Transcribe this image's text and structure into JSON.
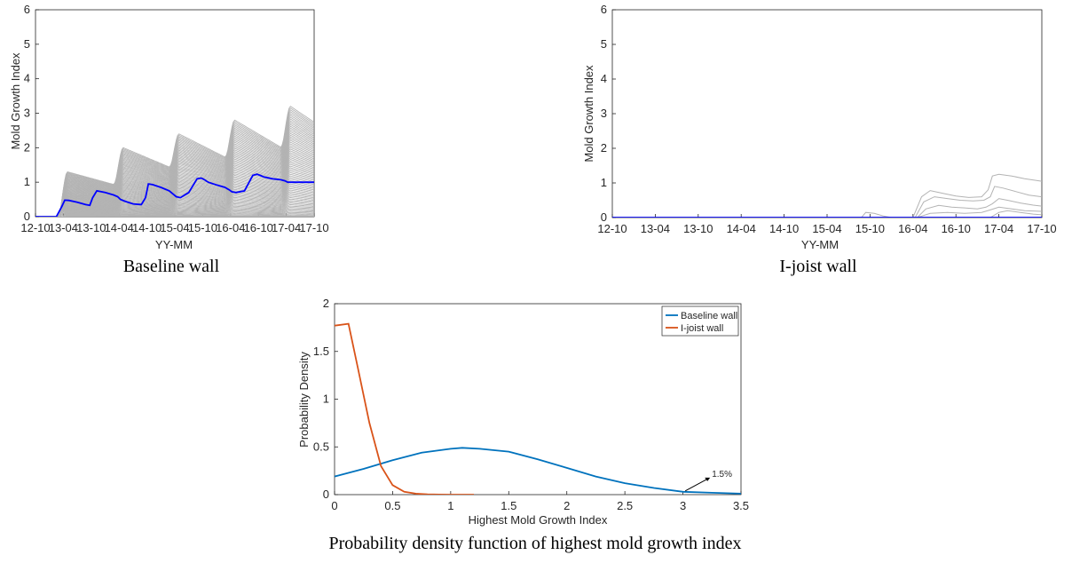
{
  "captions": {
    "baseline": "Baseline wall",
    "ijoist": "I-joist wall",
    "pdf": "Probability density function of highest mold growth index"
  },
  "colors": {
    "gray_lines": "#b3b3b3",
    "mean_line": "#0000ff",
    "baseline_pdf": "#0072bd",
    "ijoist_pdf": "#d95319",
    "axis": "#262626"
  },
  "chart_data": [
    {
      "id": "baseline",
      "type": "line",
      "xlabel": "YY-MM",
      "ylabel": "Mold Growth Index",
      "x_tick_labels": [
        "12-10",
        "13-04",
        "13-10",
        "14-04",
        "14-10",
        "15-04",
        "15-10",
        "16-04",
        "16-10",
        "17-04",
        "17-10"
      ],
      "xlim": [
        0,
        10
      ],
      "ylim": [
        0,
        6
      ],
      "y_ticks": [
        0,
        1,
        2,
        3,
        4,
        5,
        6
      ],
      "highlight_series": {
        "color": "#0000ff",
        "x": [
          0,
          0.75,
          0.95,
          1.05,
          1.2,
          1.5,
          1.8,
          1.95,
          2.05,
          2.2,
          2.5,
          2.8,
          2.95,
          3.05,
          3.2,
          3.5,
          3.8,
          3.95,
          4.05,
          4.2,
          4.5,
          4.8,
          4.95,
          5.05,
          5.2,
          5.5,
          5.8,
          5.95,
          6.05,
          6.2,
          6.5,
          6.8,
          6.95,
          7.05,
          7.2,
          7.5,
          7.8,
          7.95,
          8.05,
          8.2,
          8.5,
          8.8,
          8.95,
          9.05,
          9.2,
          9.5,
          9.8,
          10
        ],
        "y": [
          0,
          0,
          0.3,
          0.48,
          0.47,
          0.42,
          0.35,
          0.33,
          0.55,
          0.75,
          0.7,
          0.63,
          0.58,
          0.5,
          0.45,
          0.37,
          0.35,
          0.55,
          0.95,
          0.93,
          0.85,
          0.75,
          0.65,
          0.58,
          0.55,
          0.7,
          1.1,
          1.12,
          1.08,
          1.0,
          0.92,
          0.85,
          0.78,
          0.72,
          0.7,
          0.75,
          1.2,
          1.23,
          1.2,
          1.15,
          1.1,
          1.07,
          1.04,
          1.0,
          1.0,
          1.0,
          1.0,
          1.0
        ]
      },
      "envelope": {
        "color": "#b3b3b3",
        "peaks_max": [
          1.3,
          2.0,
          2.4,
          2.8,
          3.2
        ],
        "end_max": 3.0
      }
    },
    {
      "id": "ijoist",
      "type": "line",
      "xlabel": "YY-MM",
      "ylabel": "Mold Growth Index",
      "x_tick_labels": [
        "12-10",
        "13-04",
        "13-10",
        "14-04",
        "14-10",
        "15-04",
        "15-10",
        "16-04",
        "16-10",
        "17-04",
        "17-10"
      ],
      "xlim": [
        0,
        10
      ],
      "ylim": [
        0,
        6
      ],
      "y_ticks": [
        0,
        1,
        2,
        3,
        4,
        5,
        6
      ],
      "highlight_series": {
        "color": "#0000ff",
        "x": [
          0,
          10
        ],
        "y": [
          0,
          0
        ]
      },
      "gray_series": [
        {
          "x": [
            0,
            7.0,
            7.2,
            7.4,
            7.7,
            8.0,
            8.3,
            8.6,
            8.75,
            8.85,
            9.0,
            9.3,
            9.6,
            10
          ],
          "y": [
            0,
            0,
            0.6,
            0.78,
            0.7,
            0.62,
            0.58,
            0.6,
            0.8,
            1.2,
            1.25,
            1.2,
            1.12,
            1.05
          ]
        },
        {
          "x": [
            0,
            7.05,
            7.25,
            7.5,
            7.8,
            8.1,
            8.4,
            8.65,
            8.8,
            8.9,
            9.1,
            9.4,
            9.7,
            10
          ],
          "y": [
            0,
            0,
            0.45,
            0.6,
            0.55,
            0.5,
            0.48,
            0.5,
            0.6,
            0.9,
            0.85,
            0.75,
            0.65,
            0.6
          ]
        },
        {
          "x": [
            0,
            7.1,
            7.3,
            7.6,
            7.9,
            8.2,
            8.5,
            8.7,
            8.85,
            9.0,
            9.2,
            9.5,
            9.8,
            10
          ],
          "y": [
            0,
            0,
            0.25,
            0.35,
            0.3,
            0.28,
            0.25,
            0.3,
            0.4,
            0.55,
            0.5,
            0.42,
            0.36,
            0.33
          ]
        },
        {
          "x": [
            0,
            7.1,
            7.4,
            7.8,
            8.2,
            8.6,
            8.8,
            9.0,
            9.3,
            9.6,
            10
          ],
          "y": [
            0,
            0,
            0.12,
            0.15,
            0.12,
            0.15,
            0.22,
            0.3,
            0.25,
            0.2,
            0.18
          ]
        },
        {
          "x": [
            0,
            5.8,
            5.9,
            6.1,
            6.3,
            6.5,
            10
          ],
          "y": [
            0,
            0,
            0.15,
            0.12,
            0.05,
            0,
            0
          ]
        },
        {
          "x": [
            0,
            8.8,
            9.0,
            9.2,
            9.5,
            9.8,
            10
          ],
          "y": [
            0,
            0,
            0.15,
            0.2,
            0.15,
            0.1,
            0.08
          ]
        }
      ]
    },
    {
      "id": "pdf",
      "type": "line",
      "xlabel": "Highest Mold Growth Index",
      "ylabel": "Probability Density",
      "xlim": [
        0,
        3.5
      ],
      "ylim": [
        0,
        2
      ],
      "x_ticks": [
        0,
        0.5,
        1,
        1.5,
        2,
        2.5,
        3,
        3.5
      ],
      "y_ticks": [
        0,
        0.5,
        1,
        1.5,
        2
      ],
      "legend": "top-right",
      "series": [
        {
          "name": "Baseline wall",
          "color": "#0072bd",
          "x": [
            0,
            0.25,
            0.5,
            0.75,
            1.0,
            1.1,
            1.25,
            1.5,
            1.75,
            2.0,
            2.25,
            2.5,
            2.75,
            3.0,
            3.25,
            3.5
          ],
          "y": [
            0.19,
            0.27,
            0.36,
            0.44,
            0.48,
            0.49,
            0.48,
            0.45,
            0.37,
            0.28,
            0.19,
            0.12,
            0.07,
            0.03,
            0.02,
            0.01
          ]
        },
        {
          "name": "I-joist wall",
          "color": "#d95319",
          "x": [
            0,
            0.12,
            0.2,
            0.3,
            0.4,
            0.5,
            0.6,
            0.7,
            0.8,
            0.9,
            1.0,
            1.2
          ],
          "y": [
            1.77,
            1.79,
            1.33,
            0.75,
            0.3,
            0.1,
            0.03,
            0.01,
            0.004,
            0.001,
            0,
            0
          ]
        }
      ],
      "annotation": {
        "text": "1.5%",
        "x": 3.02,
        "y": 0.02
      }
    }
  ]
}
